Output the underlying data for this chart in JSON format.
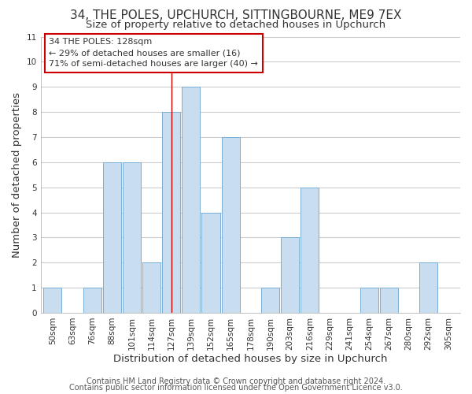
{
  "title1": "34, THE POLES, UPCHURCH, SITTINGBOURNE, ME9 7EX",
  "title2": "Size of property relative to detached houses in Upchurch",
  "xlabel": "Distribution of detached houses by size in Upchurch",
  "ylabel": "Number of detached properties",
  "bin_labels": [
    "50sqm",
    "63sqm",
    "76sqm",
    "88sqm",
    "101sqm",
    "114sqm",
    "127sqm",
    "139sqm",
    "152sqm",
    "165sqm",
    "178sqm",
    "190sqm",
    "203sqm",
    "216sqm",
    "229sqm",
    "241sqm",
    "254sqm",
    "267sqm",
    "280sqm",
    "292sqm",
    "305sqm"
  ],
  "bar_heights": [
    1,
    0,
    1,
    6,
    6,
    2,
    8,
    9,
    4,
    7,
    0,
    1,
    3,
    5,
    0,
    0,
    1,
    1,
    0,
    2,
    0
  ],
  "bar_color": "#c8ddef",
  "bar_edge_color": "#7aaed4",
  "highlight_bin_index": 6,
  "highlight_line_color": "#cc0000",
  "ylim": [
    0,
    11
  ],
  "yticks": [
    0,
    1,
    2,
    3,
    4,
    5,
    6,
    7,
    8,
    9,
    10,
    11
  ],
  "annotation_box_text": "34 THE POLES: 128sqm\n← 29% of detached houses are smaller (16)\n71% of semi-detached houses are larger (40) →",
  "footer1": "Contains HM Land Registry data © Crown copyright and database right 2024.",
  "footer2": "Contains public sector information licensed under the Open Government Licence v3.0.",
  "background_color": "#ffffff",
  "grid_color": "#cccccc",
  "title_fontsize": 11,
  "subtitle_fontsize": 9.5,
  "axis_label_fontsize": 9.5,
  "tick_fontsize": 7.5,
  "footer_fontsize": 7.0
}
